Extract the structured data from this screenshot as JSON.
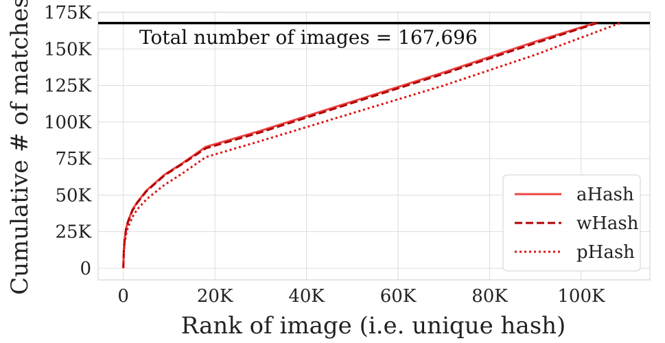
{
  "chart_data": {
    "type": "line",
    "xlabel": "Rank of image (i.e. unique hash)",
    "ylabel": "Cumulative # of matches",
    "xlim": [
      -5500,
      115000
    ],
    "ylim": [
      -8000,
      175000
    ],
    "x_ticks": [
      0,
      20000,
      40000,
      60000,
      80000,
      100000
    ],
    "x_tick_labels": [
      "0",
      "20K",
      "40K",
      "60K",
      "80K",
      "100K"
    ],
    "y_ticks": [
      0,
      25000,
      50000,
      75000,
      100000,
      125000,
      150000,
      175000
    ],
    "y_tick_labels": [
      "0",
      "25K",
      "50K",
      "75K",
      "100K",
      "125K",
      "150K",
      "175K"
    ],
    "grid": true,
    "legend_position": "bottom-right",
    "reference_line": {
      "y": 167696
    },
    "annotation": "Total number of images = 167,696",
    "series": [
      {
        "name": "aHash",
        "color": "#ef4444",
        "style": "solid",
        "x": [
          0,
          100,
          300,
          600,
          1000,
          2000,
          3000,
          5000,
          9000,
          13000,
          18000,
          30000,
          50000,
          70000,
          90000,
          103000
        ],
        "y": [
          0,
          12000,
          20000,
          27000,
          32000,
          40000,
          45000,
          53000,
          64000,
          72000,
          83000,
          94000,
          114000,
          134000,
          155000,
          167696
        ]
      },
      {
        "name": "wHash",
        "color": "#b00000",
        "style": "dashed",
        "x": [
          0,
          100,
          300,
          600,
          1000,
          2000,
          3000,
          5000,
          9000,
          13000,
          18000,
          30000,
          50000,
          70000,
          90000,
          103500
        ],
        "y": [
          0,
          11500,
          19500,
          26500,
          31500,
          39500,
          44500,
          52500,
          63500,
          71500,
          82000,
          93000,
          113000,
          133000,
          154000,
          167696
        ]
      },
      {
        "name": "pHash",
        "color": "#e01010",
        "style": "dotted",
        "x": [
          0,
          100,
          300,
          600,
          1000,
          2000,
          3000,
          5000,
          9000,
          13000,
          18000,
          30000,
          50000,
          70000,
          90000,
          108500
        ],
        "y": [
          0,
          10000,
          17000,
          23000,
          28000,
          35000,
          40000,
          47000,
          57000,
          65000,
          76000,
          87000,
          106000,
          125000,
          146000,
          167696
        ]
      }
    ]
  }
}
